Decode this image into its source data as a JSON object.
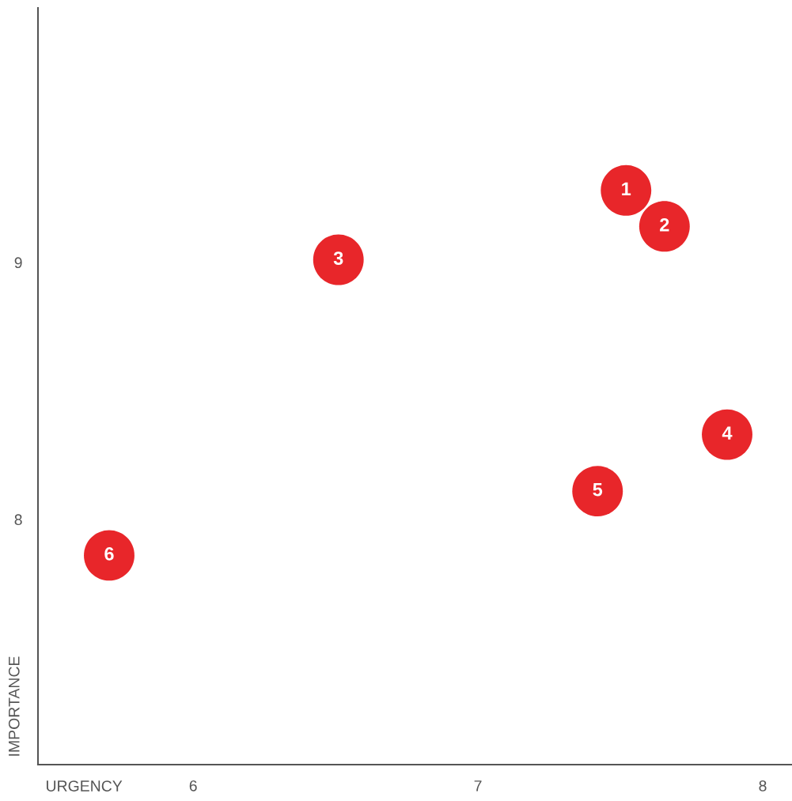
{
  "chart_data": {
    "type": "scatter",
    "xlabel": "URGENCY",
    "ylabel": "IMPORTANCE",
    "x": [
      7.52,
      7.655,
      6.51,
      7.875,
      7.42,
      5.705
    ],
    "series": [
      {
        "color": "#e8262a",
        "values": [
          9.28,
          9.14,
          9.01,
          8.33,
          8.11,
          7.86
        ]
      }
    ],
    "xlim": [
      5.455,
      8.1
    ],
    "ylim": [
      7.046,
      9.99
    ],
    "xticks": [
      6,
      7,
      8
    ],
    "yticks": [
      8,
      9
    ],
    "marker": "circle",
    "grid": false,
    "legend": false,
    "annotations": [
      {
        "text": "1",
        "x": 7.52,
        "y": 9.28
      },
      {
        "text": "2",
        "x": 7.655,
        "y": 9.14
      },
      {
        "text": "3",
        "x": 6.51,
        "y": 9.01
      },
      {
        "text": "4",
        "x": 7.875,
        "y": 8.33
      },
      {
        "text": "5",
        "x": 7.42,
        "y": 8.11
      },
      {
        "text": "6",
        "x": 5.705,
        "y": 7.86
      }
    ]
  }
}
